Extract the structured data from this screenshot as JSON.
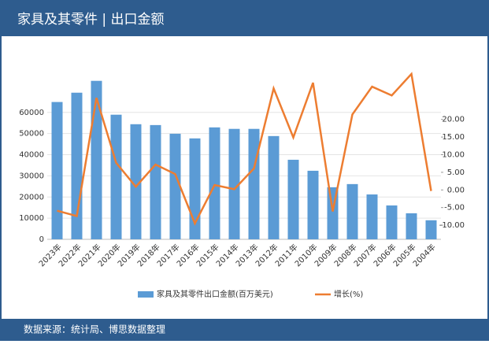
{
  "chart_data": {
    "type": "bar_line",
    "title": "家具及其零件 | 出口金额",
    "source": "数据来源：统计局、博思数据整理",
    "categories": [
      "2023年",
      "2022年",
      "2021年",
      "2020年",
      "2019年",
      "2018年",
      "2017年",
      "2016年",
      "2015年",
      "2014年",
      "2013年",
      "2012年",
      "2011年",
      "2010年",
      "2009年",
      "2008年",
      "2007年",
      "2006年",
      "2005年",
      "2004年"
    ],
    "series": [
      {
        "name": "家具及其零件出口金额(百万美元)",
        "color": "#5b9bd5",
        "type": "bar",
        "values": [
          64900,
          69300,
          74900,
          58900,
          54400,
          54000,
          49900,
          47700,
          52900,
          52200,
          52200,
          48800,
          37600,
          32400,
          24600,
          26100,
          21200,
          16000,
          12300,
          9000
        ]
      },
      {
        "name": "增长(%)",
        "color": "#ed7d31",
        "type": "line",
        "axis": "y2",
        "values": [
          -5.9,
          -7.4,
          26.1,
          7.7,
          0.9,
          7.2,
          4.5,
          -9.5,
          1.4,
          0.2,
          6.1,
          28.8,
          14.9,
          30.4,
          -6.1,
          21.4,
          29.3,
          26.8,
          32.9,
          -0.3
        ]
      }
    ],
    "ylim": [
      0,
      80000
    ],
    "yticks": [
      0,
      10000,
      20000,
      30000,
      40000,
      50000,
      60000
    ],
    "y2lim": [
      -14,
      34
    ],
    "y2ticks": [
      {
        "value": -10,
        "label": "-10.00"
      },
      {
        "value": -5,
        "label": "-5.00"
      },
      {
        "value": 0,
        "label": "0.00"
      },
      {
        "value": 5,
        "label": "5.00"
      },
      {
        "value": 10,
        "label": "10.00"
      },
      {
        "value": 15,
        "label": "15.00"
      },
      {
        "value": 20,
        "label": "20.00"
      }
    ],
    "legend": "bottom"
  }
}
